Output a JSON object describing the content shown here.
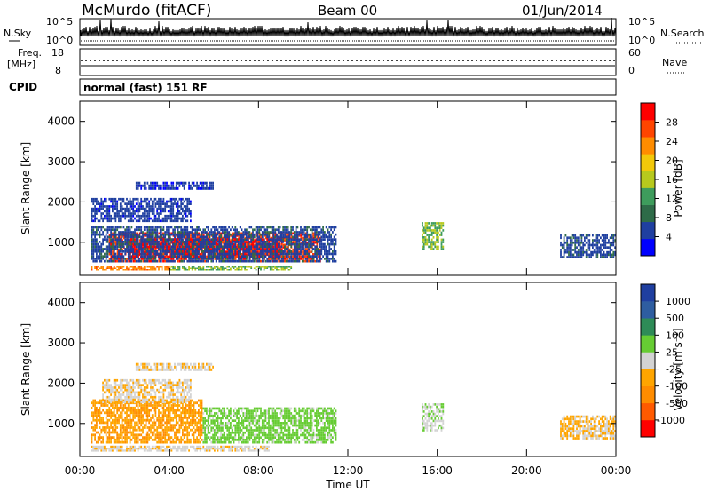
{
  "header": {
    "station": "McMurdo (fitACF)",
    "beam": "Beam 00",
    "date": "01/Jun/2014"
  },
  "panels": {
    "nsky": {
      "left_label": "N.Sky",
      "right_label": "N.Search",
      "left_ticks": [
        "10^5",
        "10^0"
      ],
      "right_ticks": [
        "10^5",
        "10^0"
      ]
    },
    "freq": {
      "left_label": "Freq.",
      "left_unit": "[MHz]",
      "right_label": "Nave",
      "left_ticks": [
        "18",
        "8"
      ],
      "right_ticks": [
        "60",
        "0"
      ]
    },
    "cpid": {
      "label": "CPID",
      "text": "normal (fast) 151 RF"
    }
  },
  "colors": {
    "power": [
      "#0000ff",
      "#1f3fa0",
      "#2e6b48",
      "#3e9c5c",
      "#b7c91d",
      "#f2c80a",
      "#ff8c00",
      "#ff4500",
      "#ff0000"
    ],
    "velocity": [
      "#ff0000",
      "#ff5a00",
      "#ff8c00",
      "#ffa500",
      "#d3d3d3",
      "#66cc33",
      "#2e8b57",
      "#2e5da0",
      "#1f3fa0"
    ]
  },
  "chart_data": [
    {
      "type": "heatmap",
      "name": "power",
      "ylabel": "Slant Range [km]",
      "yticks": [
        "1000",
        "2000",
        "3000",
        "4000"
      ],
      "ylim": [
        180,
        4500
      ],
      "xlim": [
        0,
        24
      ],
      "colorbar_label": "Power [dB]",
      "colorbar_ticks": [
        "4",
        "8",
        "12",
        "16",
        "20",
        "24",
        "28"
      ],
      "colorbar_range": [
        0,
        32
      ],
      "regions": [
        {
          "t0": 1.3,
          "t1": 10.8,
          "r0": 500,
          "r1": 1250,
          "v": 28
        },
        {
          "t0": 2.2,
          "t1": 9.0,
          "r0": 600,
          "r1": 1100,
          "v": 30
        },
        {
          "t0": 0.5,
          "t1": 11.5,
          "r0": 500,
          "r1": 1400,
          "v": 6
        },
        {
          "t0": 0.5,
          "t1": 4.0,
          "r0": 300,
          "r1": 400,
          "v": 24
        },
        {
          "t0": 4.0,
          "t1": 9.5,
          "r0": 300,
          "r1": 400,
          "v": 14
        },
        {
          "t0": 0.5,
          "t1": 5.0,
          "r0": 1500,
          "r1": 2100,
          "v": 5
        },
        {
          "t0": 2.5,
          "t1": 6.0,
          "r0": 2300,
          "r1": 2500,
          "v": 4
        },
        {
          "t0": 15.3,
          "t1": 16.3,
          "r0": 800,
          "r1": 1500,
          "v": 14
        },
        {
          "t0": 21.5,
          "t1": 24.0,
          "r0": 600,
          "r1": 1200,
          "v": 6
        }
      ]
    },
    {
      "type": "heatmap",
      "name": "velocity",
      "ylabel": "Slant Range [km]",
      "yticks": [
        "1000",
        "2000",
        "3000",
        "4000"
      ],
      "ylim": [
        180,
        4500
      ],
      "xlim": [
        0,
        24
      ],
      "xticks": [
        "00:00",
        "04:00",
        "08:00",
        "12:00",
        "16:00",
        "20:00",
        "00:00"
      ],
      "xlabel": "Time UT",
      "colorbar_label": "Velocity [m s⁻¹]",
      "colorbar_ticks": [
        "-1000",
        "-500",
        "-100",
        "-25",
        "25",
        "100",
        "500",
        "1000"
      ],
      "colorbar_range": [
        -1000,
        1000
      ],
      "regions": [
        {
          "t0": 0.5,
          "t1": 5.5,
          "r0": 500,
          "r1": 1600,
          "v": -300
        },
        {
          "t0": 5.5,
          "t1": 11.5,
          "r0": 500,
          "r1": 1400,
          "v": 200
        },
        {
          "t0": 0.5,
          "t1": 8.5,
          "r0": 300,
          "r1": 450,
          "v": -60
        },
        {
          "t0": 1.0,
          "t1": 5.0,
          "r0": 1500,
          "r1": 2100,
          "v": -80
        },
        {
          "t0": 2.5,
          "t1": 6.0,
          "r0": 2300,
          "r1": 2500,
          "v": -80
        },
        {
          "t0": 15.3,
          "t1": 16.3,
          "r0": 800,
          "r1": 1500,
          "v": 80
        },
        {
          "t0": 21.5,
          "t1": 24.0,
          "r0": 600,
          "r1": 1200,
          "v": -120
        }
      ]
    }
  ]
}
